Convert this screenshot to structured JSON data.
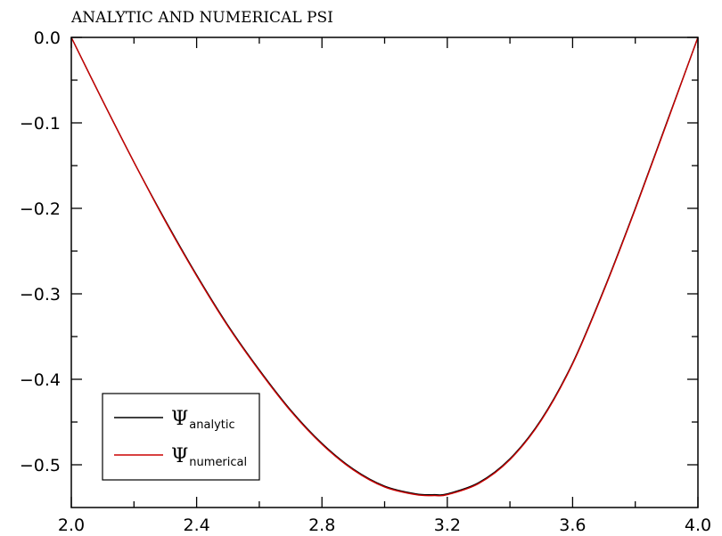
{
  "chart_data": {
    "type": "line",
    "title": "ANALYTIC AND NUMERICAL PSI",
    "xlabel": "",
    "ylabel": "",
    "xlim": [
      2.0,
      4.0
    ],
    "ylim": [
      -0.55,
      0.0
    ],
    "x_ticks": [
      2.0,
      2.4,
      2.8,
      3.2,
      3.6,
      4.0
    ],
    "x_tick_labels": [
      "2.0",
      "2.4",
      "2.8",
      "3.2",
      "3.6",
      "4.0"
    ],
    "y_ticks": [
      0.0,
      -0.1,
      -0.2,
      -0.3,
      -0.4,
      -0.5
    ],
    "y_tick_labels": [
      "0.0",
      "−0.1",
      "−0.2",
      "−0.3",
      "−0.4",
      "−0.5"
    ],
    "grid": false,
    "legend_position": "bottom-left",
    "series": [
      {
        "name_symbol": "Ψ",
        "name_subscript": "analytic",
        "color": "#000000",
        "x": [
          2.0,
          2.1,
          2.2,
          2.3,
          2.4,
          2.5,
          2.6,
          2.7,
          2.8,
          2.9,
          3.0,
          3.1,
          3.16,
          3.2,
          3.3,
          3.4,
          3.5,
          3.6,
          3.7,
          3.8,
          3.9,
          4.0
        ],
        "y": [
          0.0,
          -0.074,
          -0.146,
          -0.214,
          -0.278,
          -0.337,
          -0.389,
          -0.436,
          -0.475,
          -0.505,
          -0.525,
          -0.534,
          -0.535,
          -0.534,
          -0.521,
          -0.493,
          -0.447,
          -0.381,
          -0.295,
          -0.2,
          -0.1,
          0.0
        ]
      },
      {
        "name_symbol": "Ψ",
        "name_subscript": "numerical",
        "color": "#cc0000",
        "x": [
          2.0,
          2.1,
          2.2,
          2.3,
          2.4,
          2.5,
          2.6,
          2.7,
          2.8,
          2.9,
          3.0,
          3.1,
          3.16,
          3.2,
          3.3,
          3.4,
          3.5,
          3.6,
          3.7,
          3.8,
          3.9,
          4.0
        ],
        "y": [
          0.0,
          -0.074,
          -0.146,
          -0.215,
          -0.279,
          -0.338,
          -0.39,
          -0.437,
          -0.476,
          -0.506,
          -0.526,
          -0.535,
          -0.536,
          -0.535,
          -0.522,
          -0.494,
          -0.448,
          -0.382,
          -0.296,
          -0.201,
          -0.101,
          0.0
        ]
      }
    ]
  }
}
